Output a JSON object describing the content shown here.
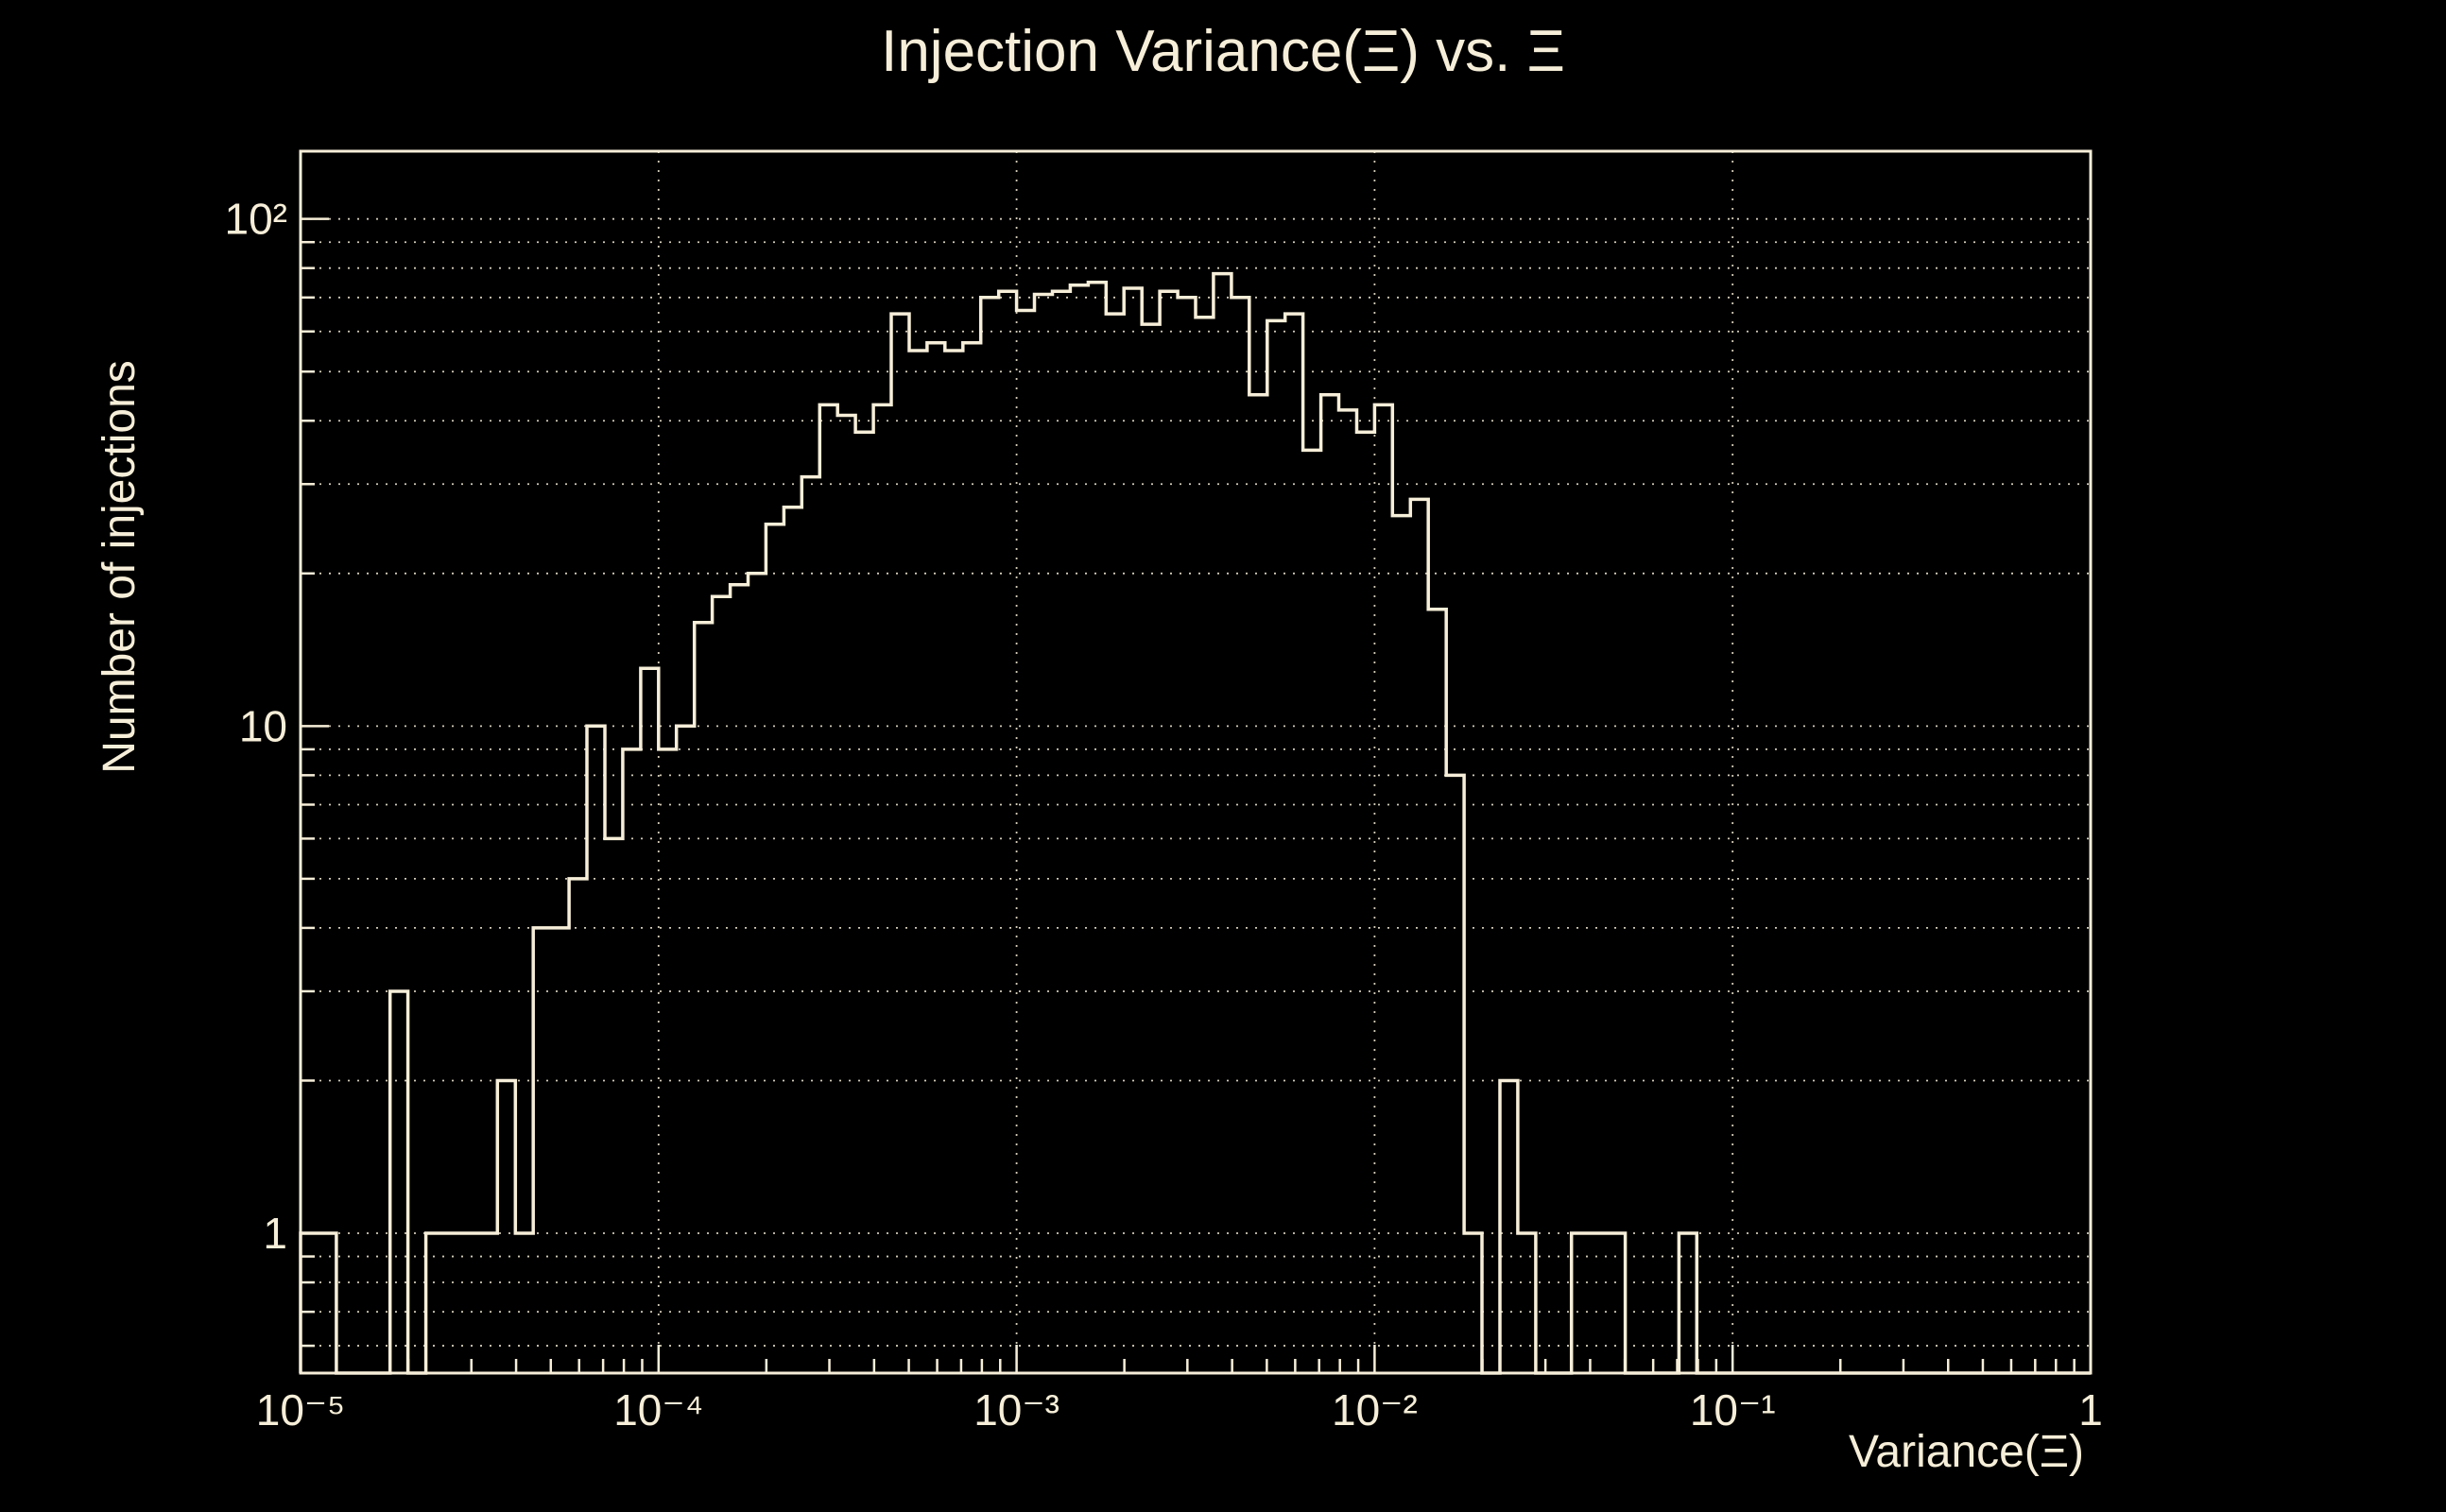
{
  "page": {
    "background": "#000000",
    "foreground": "#f6eed8"
  },
  "chart_data": {
    "type": "histogram-step",
    "title": "Injection Variance(Ξ) vs. Ξ",
    "xlabel": "Variance(Ξ)",
    "ylabel": "Number of injections",
    "x_scale": "log",
    "y_scale": "log",
    "xlim": [
      1e-05,
      1
    ],
    "ylim": [
      0.53,
      136
    ],
    "grid": "on",
    "line_color": "#f6eed8",
    "grid_color": "#f6eed8",
    "background": "#000000",
    "bins_per_decade": 20,
    "bin_edges_log10_start": -5,
    "counts": [
      1,
      1,
      0,
      0,
      0,
      3,
      0,
      1,
      1,
      1,
      1,
      2,
      1,
      4,
      4,
      5,
      10,
      6,
      9,
      13,
      9,
      10,
      16,
      18,
      19,
      20,
      25,
      27,
      31,
      43,
      41,
      38,
      43,
      65,
      55,
      57,
      55,
      57,
      70,
      72,
      66,
      71,
      72,
      74,
      75,
      65,
      73,
      62,
      72,
      70,
      64,
      78,
      70,
      45,
      63,
      65,
      35,
      45,
      42,
      38,
      43,
      26,
      28,
      17,
      8,
      1,
      0,
      2,
      1,
      0,
      0,
      1,
      1,
      1,
      0,
      0,
      0,
      1,
      0,
      0,
      0,
      0,
      0,
      0,
      0,
      0,
      0,
      0,
      0,
      0,
      0,
      0,
      0,
      0,
      0,
      0,
      0,
      0,
      0,
      0
    ],
    "xticks": [
      {
        "value": 1e-05,
        "label": "10⁻⁵"
      },
      {
        "value": 0.0001,
        "label": "10⁻⁴"
      },
      {
        "value": 0.001,
        "label": "10⁻³"
      },
      {
        "value": 0.01,
        "label": "10⁻²"
      },
      {
        "value": 0.1,
        "label": "10⁻¹"
      },
      {
        "value": 1,
        "label": "1"
      }
    ],
    "yticks": [
      {
        "value": 100,
        "label": "10²"
      },
      {
        "value": 10,
        "label": "10"
      },
      {
        "value": 1,
        "label": "1"
      }
    ]
  }
}
